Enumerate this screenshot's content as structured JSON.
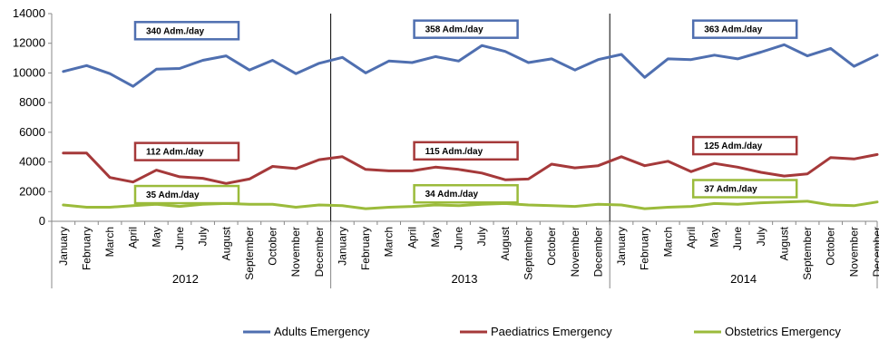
{
  "chart_data": {
    "type": "line",
    "title": "",
    "xlabel": "",
    "ylabel": "",
    "ylim": [
      0,
      14000
    ],
    "yticks": [
      0,
      2000,
      4000,
      6000,
      8000,
      10000,
      12000,
      14000
    ],
    "ytick_labels": [
      "0",
      "2000",
      "4000",
      "6000",
      "8000",
      "10000",
      "12000",
      "14000"
    ],
    "grid": false,
    "legend_position": "bottom",
    "months": [
      "January",
      "February",
      "March",
      "April",
      "May",
      "June",
      "July",
      "August",
      "September",
      "October",
      "November",
      "December"
    ],
    "years": [
      "2012",
      "2013",
      "2014"
    ],
    "series": [
      {
        "name": "Adults Emergency",
        "color": "#4F6FB0",
        "values": [
          10100,
          10500,
          9950,
          9100,
          10250,
          10300,
          10850,
          11150,
          10200,
          10850,
          9950,
          10650,
          11050,
          10000,
          10800,
          10700,
          11100,
          10800,
          11850,
          11450,
          10700,
          10950,
          10200,
          10900,
          11250,
          9700,
          10950,
          10900,
          11200,
          10950,
          11400,
          11900,
          11150,
          11650,
          10450,
          11200
        ]
      },
      {
        "name": "Paediatrics Emergency",
        "color": "#A5393A",
        "values": [
          4600,
          4600,
          2950,
          2650,
          3450,
          3000,
          2900,
          2550,
          2850,
          3700,
          3550,
          4150,
          4350,
          3500,
          3400,
          3400,
          3650,
          3500,
          3250,
          2800,
          2850,
          3850,
          3600,
          3750,
          4350,
          3750,
          4050,
          3350,
          3900,
          3650,
          3300,
          3050,
          3200,
          4300,
          4200,
          4500
        ]
      },
      {
        "name": "Obstetrics Emergency",
        "color": "#9BBB3B",
        "values": [
          1100,
          950,
          950,
          1050,
          1150,
          1000,
          1150,
          1200,
          1150,
          1150,
          950,
          1100,
          1050,
          850,
          950,
          1000,
          1100,
          1050,
          1150,
          1200,
          1100,
          1050,
          1000,
          1150,
          1100,
          850,
          950,
          1000,
          1200,
          1150,
          1250,
          1300,
          1350,
          1100,
          1050,
          1300
        ]
      }
    ],
    "annotations": [
      {
        "text": "340 Adm./day",
        "color": "#4F6FB0",
        "year_index": 0,
        "value": 12850
      },
      {
        "text": "358 Adm./day",
        "color": "#4F6FB0",
        "year_index": 1,
        "value": 12950
      },
      {
        "text": "363 Adm./day",
        "color": "#4F6FB0",
        "year_index": 2,
        "value": 12950
      },
      {
        "text": "112 Adm./day",
        "color": "#A5393A",
        "year_index": 0,
        "value": 4700
      },
      {
        "text": "115 Adm./day",
        "color": "#A5393A",
        "year_index": 1,
        "value": 4750
      },
      {
        "text": "125 Adm./day",
        "color": "#A5393A",
        "year_index": 2,
        "value": 5100
      },
      {
        "text": "35 Adm./day",
        "color": "#9BBB3B",
        "year_index": 0,
        "value": 1800
      },
      {
        "text": "34 Adm./day",
        "color": "#9BBB3B",
        "year_index": 1,
        "value": 1850
      },
      {
        "text": "37 Adm./day",
        "color": "#9BBB3B",
        "year_index": 2,
        "value": 2200
      }
    ]
  }
}
